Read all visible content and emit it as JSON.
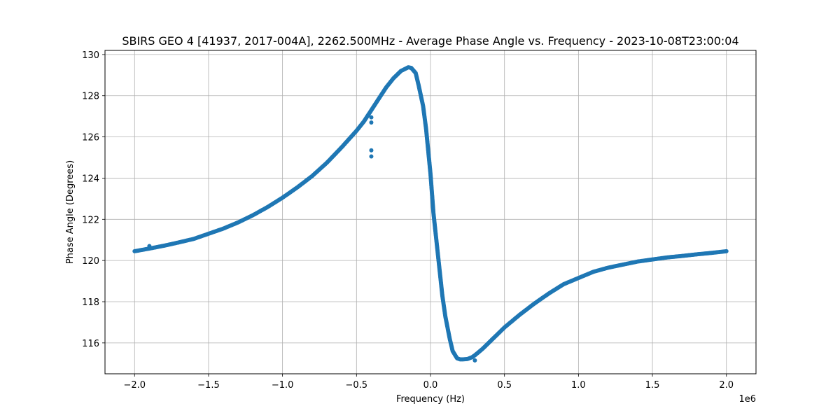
{
  "chart_data": {
    "type": "scatter",
    "title": "SBIRS GEO 4 [41937, 2017-004A], 2262.500MHz - Average Phase Angle vs. Frequency - 2023-10-08T23:00:04",
    "xlabel": "Frequency (Hz)",
    "ylabel": "Phase Angle (Degrees)",
    "x_offset_label": "1e6",
    "xlim": [
      -2200000,
      2200000
    ],
    "ylim": [
      114.5,
      130.2
    ],
    "x_ticks": [
      -2000000,
      -1500000,
      -1000000,
      -500000,
      0,
      500000,
      1000000,
      1500000,
      2000000
    ],
    "x_tick_labels": [
      "−2.0",
      "−1.5",
      "−1.0",
      "−0.5",
      "0.0",
      "0.5",
      "1.0",
      "1.5",
      "2.0"
    ],
    "y_ticks": [
      116,
      118,
      120,
      122,
      124,
      126,
      128,
      130
    ],
    "y_tick_labels": [
      "116",
      "118",
      "120",
      "122",
      "124",
      "126",
      "128",
      "130"
    ],
    "grid": true,
    "series": [
      {
        "color": "#1f77b4",
        "x": [
          -2000000,
          -1900000,
          -1800000,
          -1700000,
          -1600000,
          -1500000,
          -1400000,
          -1300000,
          -1200000,
          -1100000,
          -1000000,
          -900000,
          -800000,
          -700000,
          -600000,
          -500000,
          -450000,
          -400000,
          -350000,
          -300000,
          -250000,
          -200000,
          -150000,
          -130000,
          -100000,
          -80000,
          -50000,
          -30000,
          0,
          20000,
          50000,
          80000,
          100000,
          130000,
          150000,
          180000,
          200000,
          220000,
          250000,
          280000,
          300000,
          350000,
          400000,
          450000,
          500000,
          600000,
          700000,
          800000,
          900000,
          1000000,
          1100000,
          1200000,
          1300000,
          1400000,
          1500000,
          1600000,
          1700000,
          1800000,
          1900000,
          2000000
        ],
        "y": [
          120.45,
          120.58,
          120.72,
          120.88,
          121.05,
          121.3,
          121.55,
          121.85,
          122.2,
          122.6,
          123.05,
          123.55,
          124.1,
          124.75,
          125.5,
          126.3,
          126.75,
          127.3,
          127.85,
          128.4,
          128.85,
          129.2,
          129.38,
          129.35,
          129.1,
          128.5,
          127.5,
          126.4,
          124.2,
          122.3,
          120.3,
          118.3,
          117.3,
          116.2,
          115.6,
          115.25,
          115.2,
          115.2,
          115.22,
          115.3,
          115.4,
          115.7,
          116.05,
          116.4,
          116.75,
          117.35,
          117.9,
          118.4,
          118.85,
          119.15,
          119.45,
          119.65,
          119.8,
          119.95,
          120.05,
          120.15,
          120.22,
          120.3,
          120.37,
          120.45
        ]
      }
    ],
    "outliers": {
      "x": [
        -400000,
        -400000,
        -400000,
        -400000,
        -1900000,
        300000
      ],
      "y": [
        126.95,
        126.7,
        125.35,
        125.05,
        120.7,
        115.15
      ]
    }
  }
}
